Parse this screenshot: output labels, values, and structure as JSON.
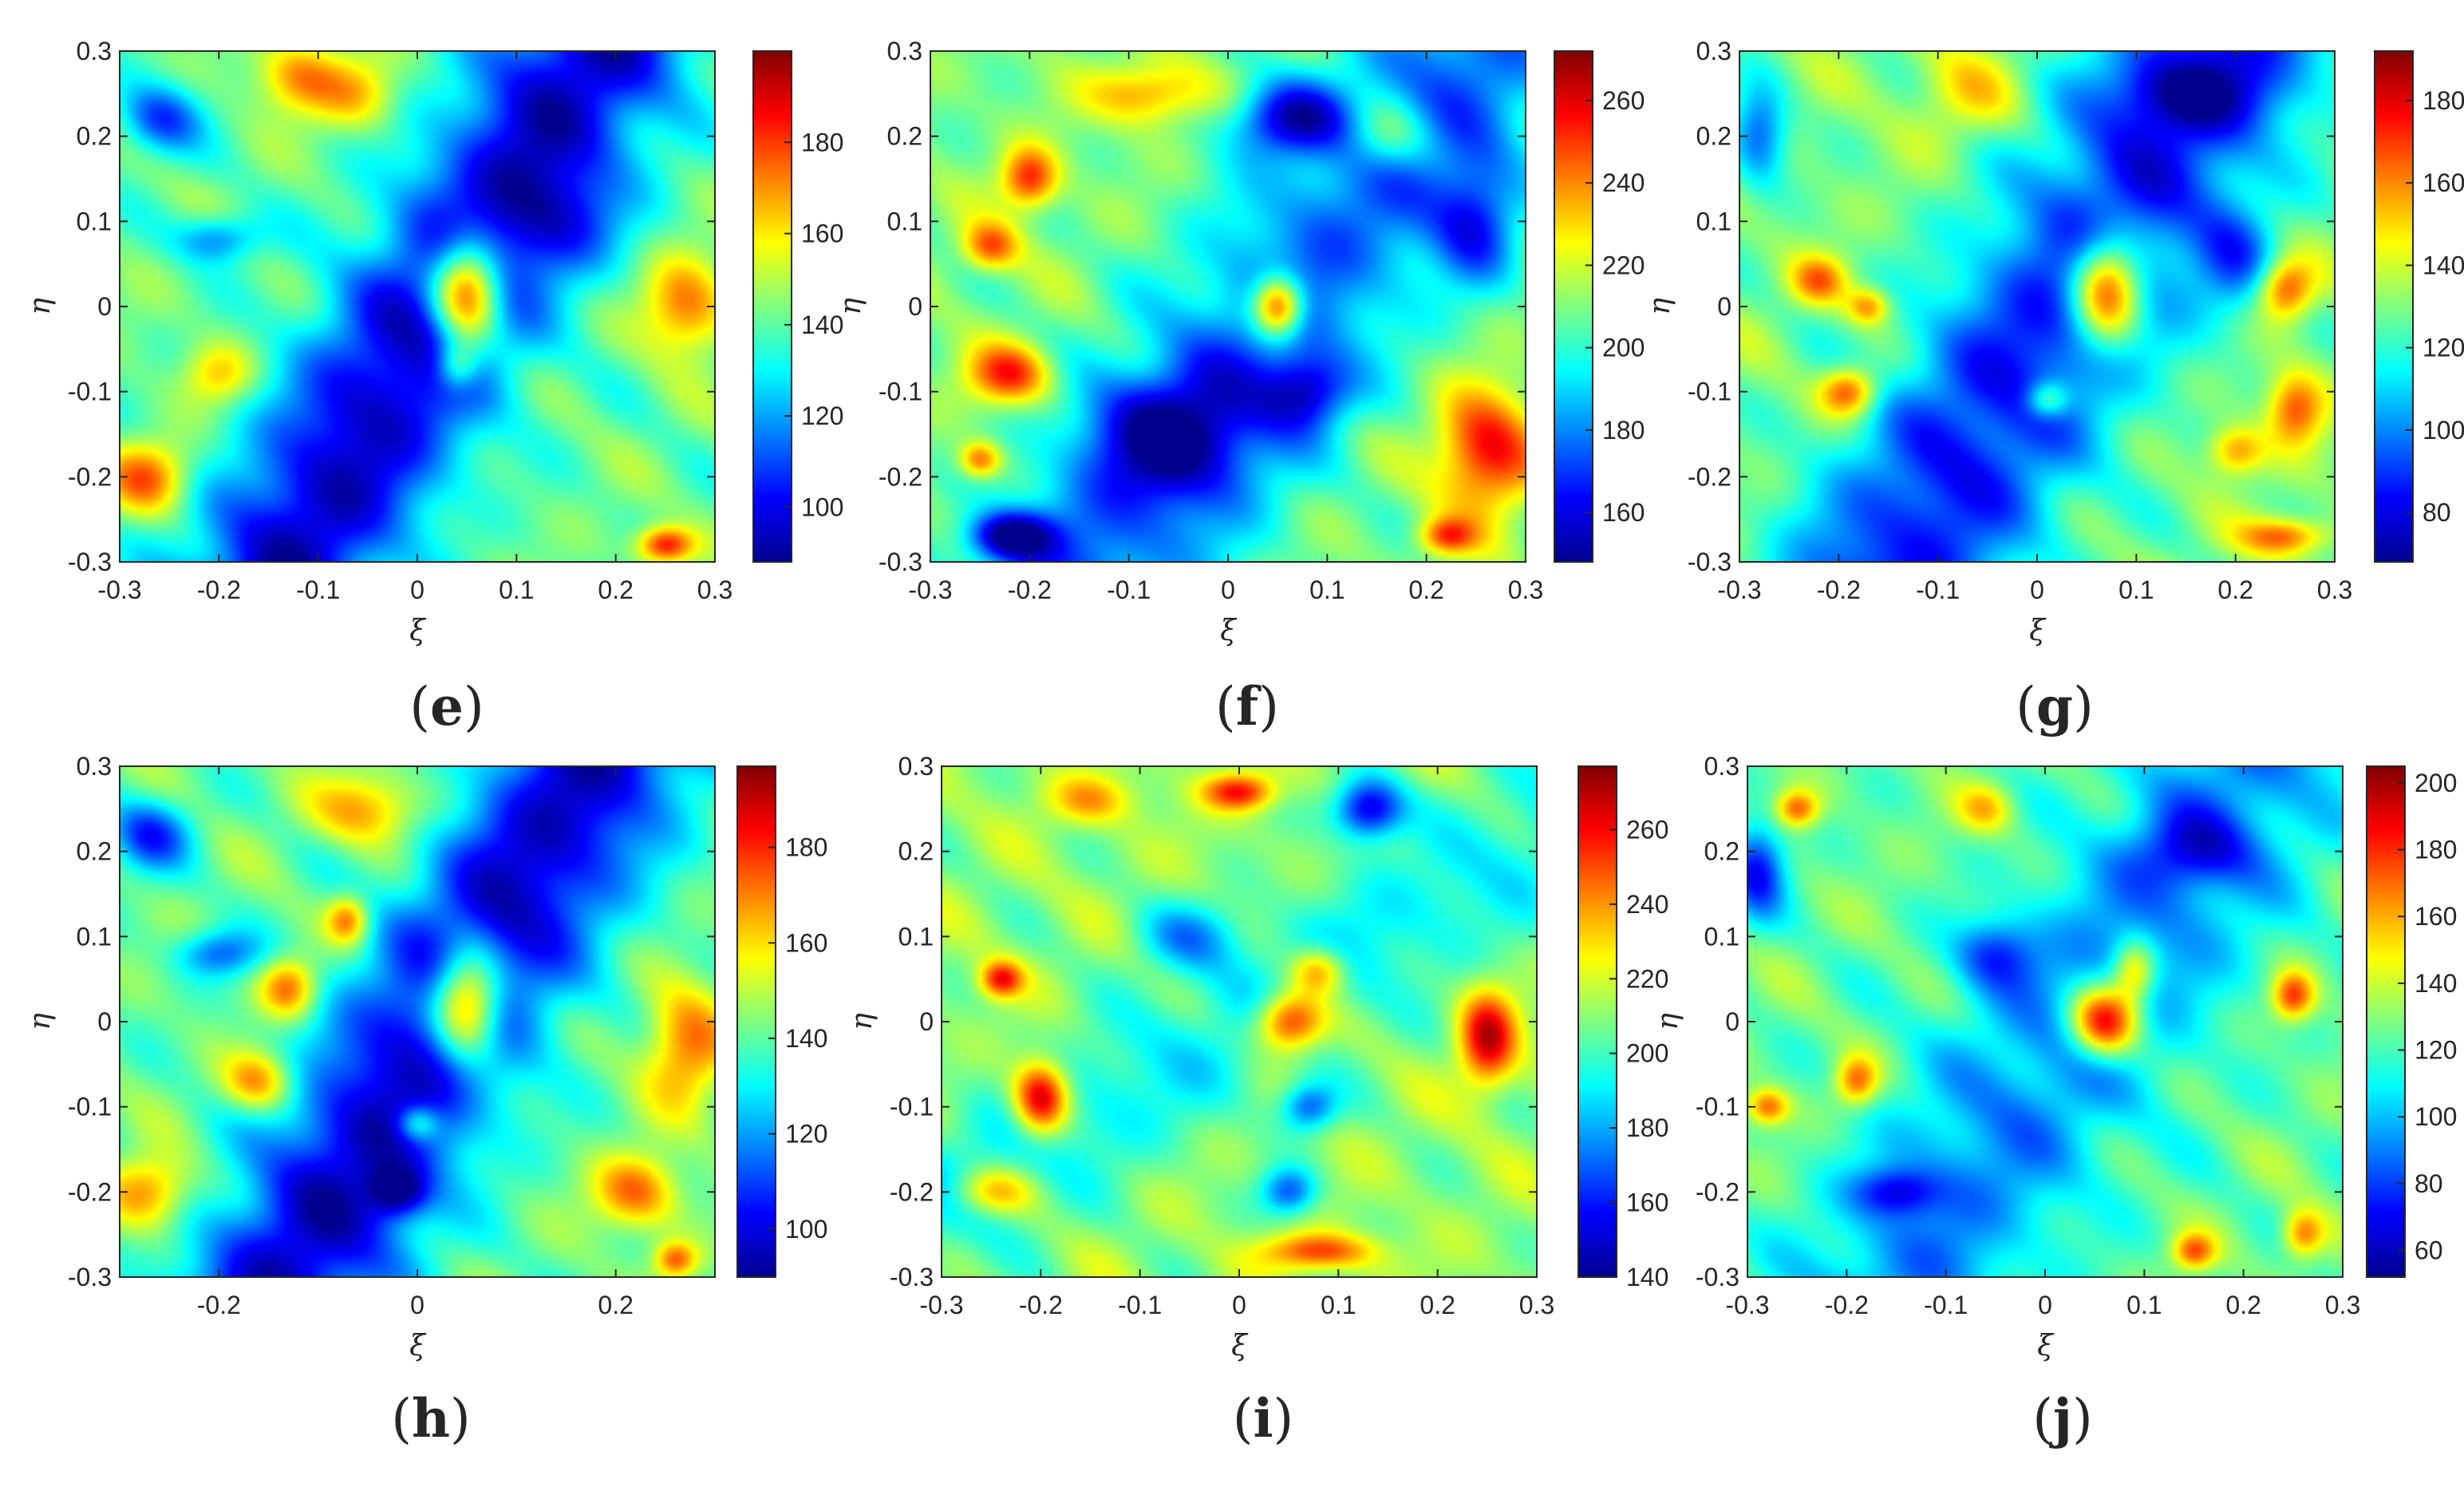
{
  "figure": {
    "colormap": "jet",
    "colormap_stops": [
      "#00008f",
      "#0000ff",
      "#0080ff",
      "#00ffff",
      "#80ff80",
      "#ffff00",
      "#ff8000",
      "#ff0000",
      "#800000"
    ]
  },
  "chart_data": [
    {
      "type": "heatmap",
      "panel": "e",
      "label_open": "(",
      "label_letter": "e",
      "label_close": ")",
      "xlabel": "ξ",
      "ylabel": "η",
      "xlim": [
        -0.3,
        0.3
      ],
      "ylim": [
        -0.3,
        0.3
      ],
      "xticks": [
        "-0.3",
        "-0.2",
        "-0.1",
        "0",
        "0.1",
        "0.2",
        "0.3"
      ],
      "yticks": [
        "0.3",
        "0.2",
        "0.1",
        "0",
        "-0.1",
        "-0.2",
        "-0.3"
      ],
      "colorbar": {
        "min": 88,
        "max": 200,
        "ticks": [
          "100",
          "120",
          "140",
          "160",
          "180"
        ]
      },
      "field": {
        "base": 0.48,
        "band": {
          "angle_deg": 63,
          "offset": 0.02,
          "width": 0.07,
          "depth": 0.42
        },
        "features": [
          {
            "x": 0.05,
            "y": 0.02,
            "sx": 0.025,
            "sy": 0.045,
            "a": 0.6
          },
          {
            "x": 0.04,
            "y": -0.07,
            "sx": 0.015,
            "sy": 0.02,
            "a": 0.25
          },
          {
            "x": -0.2,
            "y": -0.08,
            "sx": 0.025,
            "sy": 0.025,
            "a": 0.2
          },
          {
            "x": -0.27,
            "y": -0.2,
            "sx": 0.03,
            "sy": 0.03,
            "a": 0.3
          },
          {
            "x": -0.12,
            "y": 0.27,
            "sx": 0.03,
            "sy": 0.03,
            "a": 0.25
          },
          {
            "x": -0.06,
            "y": 0.25,
            "sx": 0.03,
            "sy": 0.03,
            "a": 0.2
          },
          {
            "x": 0.27,
            "y": 0.0,
            "sx": 0.03,
            "sy": 0.04,
            "a": 0.3
          },
          {
            "x": 0.25,
            "y": -0.28,
            "sx": 0.02,
            "sy": 0.015,
            "a": 0.4
          },
          {
            "x": -0.26,
            "y": 0.22,
            "sx": 0.03,
            "sy": 0.03,
            "a": -0.3
          },
          {
            "x": -0.2,
            "y": 0.08,
            "sx": 0.03,
            "sy": 0.02,
            "a": -0.25
          },
          {
            "x": 0.15,
            "y": 0.1,
            "sx": 0.04,
            "sy": 0.04,
            "a": -0.15
          }
        ]
      }
    },
    {
      "type": "heatmap",
      "panel": "f",
      "label_open": "(",
      "label_letter": "f",
      "label_close": ")",
      "xlabel": "ξ",
      "ylabel": "η",
      "xlim": [
        -0.3,
        0.3
      ],
      "ylim": [
        -0.3,
        0.3
      ],
      "xticks": [
        "-0.3",
        "-0.2",
        "-0.1",
        "0",
        "0.1",
        "0.2",
        "0.3"
      ],
      "yticks": [
        "0.3",
        "0.2",
        "0.1",
        "0",
        "-0.1",
        "-0.2",
        "-0.3"
      ],
      "colorbar": {
        "min": 148,
        "max": 272,
        "ticks": [
          "160",
          "180",
          "200",
          "220",
          "240",
          "260"
        ]
      },
      "field": {
        "base": 0.5,
        "band": {
          "angle_deg": 58,
          "offset": 0.05,
          "width": 0.08,
          "depth": 0.28
        },
        "features": [
          {
            "x": 0.05,
            "y": -0.0,
            "sx": 0.018,
            "sy": 0.025,
            "a": 0.55
          },
          {
            "x": -0.2,
            "y": 0.15,
            "sx": 0.02,
            "sy": 0.025,
            "a": 0.35
          },
          {
            "x": -0.24,
            "y": 0.07,
            "sx": 0.02,
            "sy": 0.02,
            "a": 0.3
          },
          {
            "x": -0.22,
            "y": -0.08,
            "sx": 0.03,
            "sy": 0.025,
            "a": 0.35
          },
          {
            "x": -0.25,
            "y": -0.18,
            "sx": 0.015,
            "sy": 0.015,
            "a": 0.3
          },
          {
            "x": 0.26,
            "y": -0.17,
            "sx": 0.035,
            "sy": 0.05,
            "a": 0.4
          },
          {
            "x": 0.22,
            "y": -0.27,
            "sx": 0.02,
            "sy": 0.015,
            "a": 0.3
          },
          {
            "x": -0.08,
            "y": 0.25,
            "sx": 0.04,
            "sy": 0.025,
            "a": 0.25
          },
          {
            "x": 0.16,
            "y": 0.2,
            "sx": 0.03,
            "sy": 0.03,
            "a": 0.2
          },
          {
            "x": 0.06,
            "y": 0.22,
            "sx": 0.04,
            "sy": 0.03,
            "a": -0.35
          },
          {
            "x": 0.25,
            "y": 0.1,
            "sx": 0.03,
            "sy": 0.05,
            "a": -0.3
          },
          {
            "x": -0.06,
            "y": -0.15,
            "sx": 0.06,
            "sy": 0.05,
            "a": -0.3
          },
          {
            "x": -0.22,
            "y": -0.27,
            "sx": 0.03,
            "sy": 0.02,
            "a": -0.45
          },
          {
            "x": 0.08,
            "y": -0.1,
            "sx": 0.03,
            "sy": 0.03,
            "a": -0.3
          }
        ]
      }
    },
    {
      "type": "heatmap",
      "panel": "g",
      "label_open": "(",
      "label_letter": "g",
      "label_close": ")",
      "xlabel": "ξ",
      "ylabel": "η",
      "xlim": [
        -0.3,
        0.3
      ],
      "ylim": [
        -0.3,
        0.3
      ],
      "xticks": [
        "-0.3",
        "-0.2",
        "-0.1",
        "0",
        "0.1",
        "0.2",
        "0.3"
      ],
      "yticks": [
        "0.3",
        "0.2",
        "0.1",
        "0",
        "-0.1",
        "-0.2",
        "-0.3"
      ],
      "colorbar": {
        "min": 68,
        "max": 192,
        "ticks": [
          "80",
          "100",
          "120",
          "140",
          "160",
          "180"
        ]
      },
      "field": {
        "base": 0.5,
        "band": {
          "angle_deg": 62,
          "offset": 0.02,
          "width": 0.08,
          "depth": 0.36
        },
        "features": [
          {
            "x": 0.07,
            "y": 0.02,
            "sx": 0.025,
            "sy": 0.045,
            "a": 0.55
          },
          {
            "x": -0.19,
            "y": -0.1,
            "sx": 0.02,
            "sy": 0.02,
            "a": 0.35
          },
          {
            "x": -0.22,
            "y": 0.03,
            "sx": 0.02,
            "sy": 0.02,
            "a": 0.25
          },
          {
            "x": -0.17,
            "y": 0.0,
            "sx": 0.015,
            "sy": 0.015,
            "a": 0.25
          },
          {
            "x": 0.25,
            "y": 0.02,
            "sx": 0.02,
            "sy": 0.025,
            "a": 0.35
          },
          {
            "x": 0.26,
            "y": -0.12,
            "sx": 0.02,
            "sy": 0.03,
            "a": 0.3
          },
          {
            "x": 0.2,
            "y": -0.17,
            "sx": 0.02,
            "sy": 0.02,
            "a": 0.25
          },
          {
            "x": 0.25,
            "y": -0.27,
            "sx": 0.03,
            "sy": 0.015,
            "a": 0.3
          },
          {
            "x": 0.01,
            "y": -0.11,
            "sx": 0.015,
            "sy": 0.015,
            "a": 0.25
          },
          {
            "x": -0.07,
            "y": 0.25,
            "sx": 0.04,
            "sy": 0.04,
            "a": 0.15
          },
          {
            "x": -0.28,
            "y": 0.2,
            "sx": 0.02,
            "sy": 0.04,
            "a": -0.3
          },
          {
            "x": 0.15,
            "y": 0.25,
            "sx": 0.05,
            "sy": 0.03,
            "a": -0.2
          },
          {
            "x": 0.2,
            "y": 0.05,
            "sx": 0.03,
            "sy": 0.05,
            "a": -0.2
          }
        ]
      }
    },
    {
      "type": "heatmap",
      "panel": "h",
      "label_open": "(",
      "label_letter": "h",
      "label_close": ")",
      "xlabel": "ξ",
      "ylabel": "η",
      "xlim": [
        -0.3,
        0.3
      ],
      "ylim": [
        -0.3,
        0.3
      ],
      "xticks": [
        "-0.2",
        "0",
        "0.2"
      ],
      "yticks": [
        "0.3",
        "0.2",
        "0.1",
        "0",
        "-0.1",
        "-0.2",
        "-0.3"
      ],
      "colorbar": {
        "min": 90,
        "max": 197,
        "ticks": [
          "100",
          "120",
          "140",
          "160",
          "180"
        ]
      },
      "field": {
        "base": 0.48,
        "band": {
          "angle_deg": 63,
          "offset": 0.02,
          "width": 0.07,
          "depth": 0.42
        },
        "features": [
          {
            "x": 0.05,
            "y": 0.02,
            "sx": 0.025,
            "sy": 0.045,
            "a": 0.6
          },
          {
            "x": 0.0,
            "y": -0.12,
            "sx": 0.015,
            "sy": 0.015,
            "a": 0.25
          },
          {
            "x": -0.16,
            "y": -0.07,
            "sx": 0.025,
            "sy": 0.025,
            "a": 0.3
          },
          {
            "x": -0.13,
            "y": 0.04,
            "sx": 0.02,
            "sy": 0.025,
            "a": 0.3
          },
          {
            "x": -0.07,
            "y": 0.12,
            "sx": 0.015,
            "sy": 0.02,
            "a": 0.3
          },
          {
            "x": -0.27,
            "y": -0.2,
            "sx": 0.03,
            "sy": 0.03,
            "a": 0.3
          },
          {
            "x": -0.05,
            "y": 0.25,
            "sx": 0.04,
            "sy": 0.03,
            "a": 0.25
          },
          {
            "x": 0.27,
            "y": -0.03,
            "sx": 0.03,
            "sy": 0.05,
            "a": 0.3
          },
          {
            "x": 0.22,
            "y": -0.2,
            "sx": 0.03,
            "sy": 0.03,
            "a": 0.3
          },
          {
            "x": 0.26,
            "y": -0.28,
            "sx": 0.015,
            "sy": 0.015,
            "a": 0.3
          },
          {
            "x": -0.27,
            "y": 0.22,
            "sx": 0.03,
            "sy": 0.03,
            "a": -0.3
          },
          {
            "x": -0.2,
            "y": 0.08,
            "sx": 0.03,
            "sy": 0.02,
            "a": -0.25
          },
          {
            "x": -0.02,
            "y": -0.2,
            "sx": 0.02,
            "sy": 0.02,
            "a": -0.3
          }
        ]
      }
    },
    {
      "type": "heatmap",
      "panel": "i",
      "label_open": "(",
      "label_letter": "i",
      "label_close": ")",
      "xlabel": "ξ",
      "ylabel": "η",
      "xlim": [
        -0.3,
        0.3
      ],
      "ylim": [
        -0.3,
        0.3
      ],
      "xticks": [
        "-0.3",
        "-0.2",
        "-0.1",
        "0",
        "0.1",
        "0.2",
        "0.3"
      ],
      "yticks": [
        "0.3",
        "0.2",
        "0.1",
        "0",
        "-0.1",
        "-0.2",
        "-0.3"
      ],
      "colorbar": {
        "min": 140,
        "max": 277,
        "ticks": [
          "140",
          "160",
          "180",
          "200",
          "220",
          "240",
          "260"
        ]
      },
      "field": {
        "base": 0.52,
        "band": {
          "angle_deg": 35,
          "offset": 0.0,
          "width": 0.06,
          "depth": 0.15
        },
        "features": [
          {
            "x": -0.2,
            "y": -0.09,
            "sx": 0.02,
            "sy": 0.03,
            "a": 0.5
          },
          {
            "x": 0.05,
            "y": 0.0,
            "sx": 0.025,
            "sy": 0.025,
            "a": 0.45
          },
          {
            "x": 0.08,
            "y": 0.06,
            "sx": 0.02,
            "sy": 0.02,
            "a": 0.3
          },
          {
            "x": 0.25,
            "y": -0.02,
            "sx": 0.02,
            "sy": 0.04,
            "a": 0.4
          },
          {
            "x": -0.24,
            "y": 0.05,
            "sx": 0.015,
            "sy": 0.015,
            "a": 0.35
          },
          {
            "x": 0.0,
            "y": 0.27,
            "sx": 0.025,
            "sy": 0.015,
            "a": 0.35
          },
          {
            "x": -0.25,
            "y": -0.2,
            "sx": 0.03,
            "sy": 0.02,
            "a": 0.25
          },
          {
            "x": 0.08,
            "y": -0.27,
            "sx": 0.04,
            "sy": 0.015,
            "a": 0.3
          },
          {
            "x": -0.15,
            "y": 0.26,
            "sx": 0.03,
            "sy": 0.02,
            "a": 0.2
          },
          {
            "x": 0.13,
            "y": 0.25,
            "sx": 0.025,
            "sy": 0.025,
            "a": -0.45
          },
          {
            "x": -0.05,
            "y": 0.1,
            "sx": 0.04,
            "sy": 0.03,
            "a": -0.2
          },
          {
            "x": 0.05,
            "y": -0.2,
            "sx": 0.02,
            "sy": 0.02,
            "a": -0.3
          },
          {
            "x": 0.07,
            "y": -0.1,
            "sx": 0.02,
            "sy": 0.02,
            "a": -0.3
          }
        ]
      }
    },
    {
      "type": "heatmap",
      "panel": "j",
      "label_open": "(",
      "label_letter": "j",
      "label_close": ")",
      "xlabel": "ξ",
      "ylabel": "η",
      "xlim": [
        -0.3,
        0.3
      ],
      "ylim": [
        -0.3,
        0.3
      ],
      "xticks": [
        "-0.3",
        "-0.2",
        "-0.1",
        "0",
        "0.1",
        "0.2",
        "0.3"
      ],
      "yticks": [
        "0.3",
        "0.2",
        "0.1",
        "0",
        "-0.1",
        "-0.2",
        "-0.3"
      ],
      "colorbar": {
        "min": 52,
        "max": 205,
        "ticks": [
          "60",
          "80",
          "100",
          "120",
          "140",
          "160",
          "180",
          "200"
        ]
      },
      "field": {
        "base": 0.48,
        "band": {
          "angle_deg": 60,
          "offset": 0.03,
          "width": 0.08,
          "depth": 0.22
        },
        "features": [
          {
            "x": 0.06,
            "y": 0.0,
            "sx": 0.025,
            "sy": 0.03,
            "a": 0.55
          },
          {
            "x": 0.09,
            "y": 0.06,
            "sx": 0.015,
            "sy": 0.025,
            "a": 0.3
          },
          {
            "x": 0.25,
            "y": 0.03,
            "sx": 0.015,
            "sy": 0.02,
            "a": 0.35
          },
          {
            "x": -0.19,
            "y": -0.07,
            "sx": 0.015,
            "sy": 0.02,
            "a": 0.3
          },
          {
            "x": -0.25,
            "y": 0.25,
            "sx": 0.015,
            "sy": 0.015,
            "a": 0.3
          },
          {
            "x": -0.28,
            "y": -0.1,
            "sx": 0.015,
            "sy": 0.015,
            "a": 0.3
          },
          {
            "x": 0.15,
            "y": -0.27,
            "sx": 0.015,
            "sy": 0.015,
            "a": 0.3
          },
          {
            "x": 0.26,
            "y": -0.25,
            "sx": 0.015,
            "sy": 0.02,
            "a": 0.3
          },
          {
            "x": -0.06,
            "y": 0.25,
            "sx": 0.02,
            "sy": 0.02,
            "a": 0.2
          },
          {
            "x": -0.29,
            "y": 0.18,
            "sx": 0.02,
            "sy": 0.04,
            "a": -0.35
          },
          {
            "x": -0.05,
            "y": 0.08,
            "sx": 0.03,
            "sy": 0.03,
            "a": -0.25
          },
          {
            "x": -0.15,
            "y": -0.2,
            "sx": 0.03,
            "sy": 0.02,
            "a": -0.25
          },
          {
            "x": 0.15,
            "y": 0.2,
            "sx": 0.04,
            "sy": 0.03,
            "a": -0.2
          }
        ]
      }
    }
  ]
}
